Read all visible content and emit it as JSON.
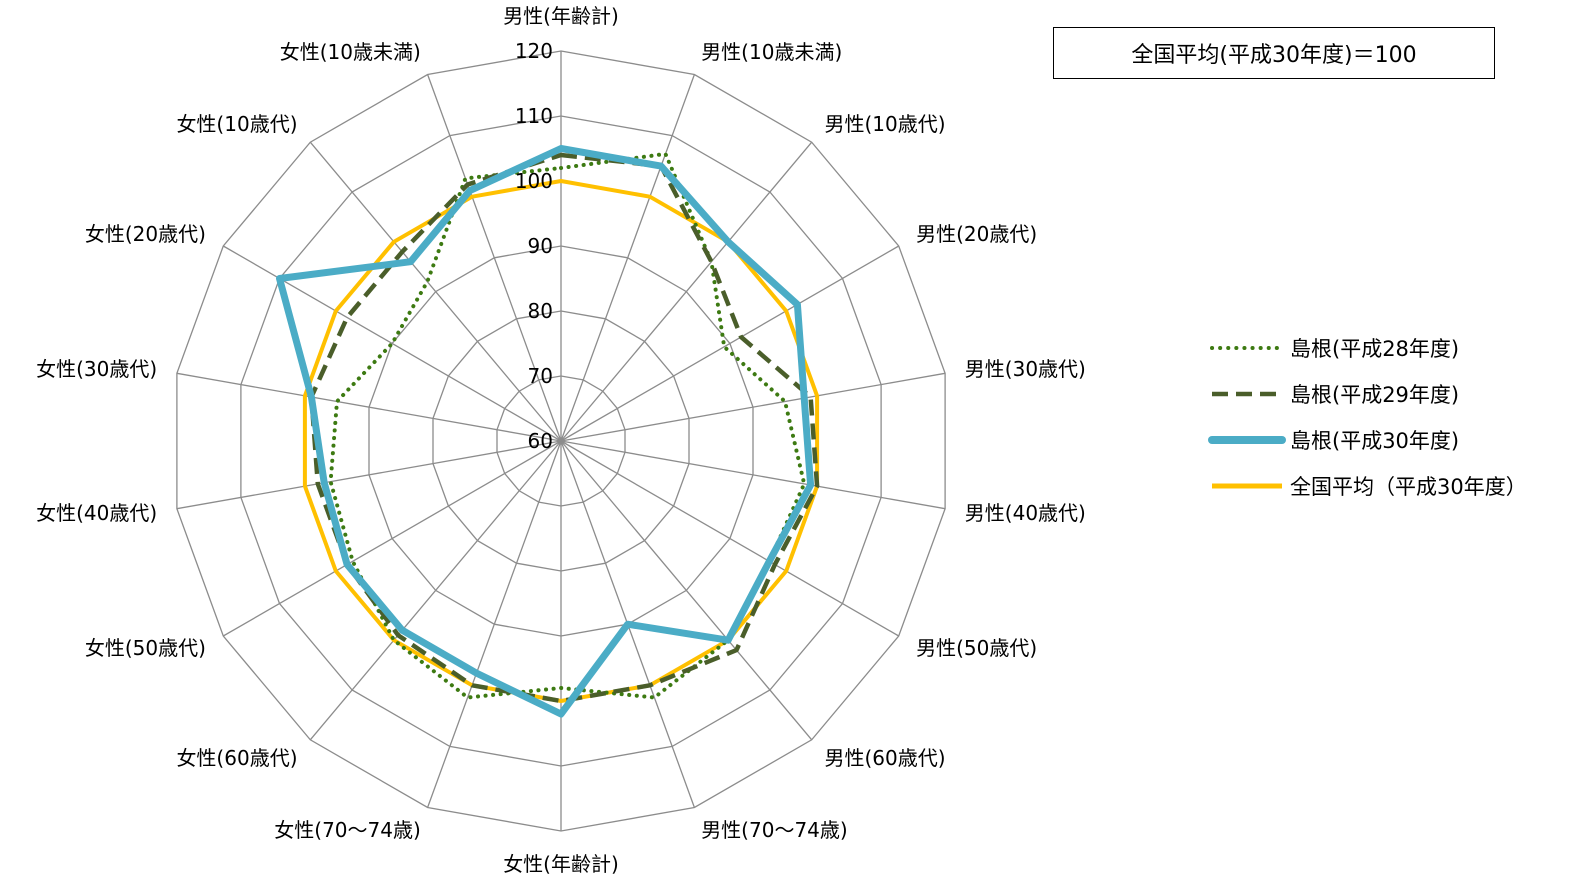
{
  "note": "全国平均(平成30年度)＝100",
  "chart_data": {
    "type": "radar",
    "title": "",
    "categories": [
      "男性(年齢計)",
      "男性(10歳未満)",
      "男性(10歳代)",
      "男性(20歳代)",
      "男性(30歳代)",
      "男性(40歳代)",
      "男性(50歳代)",
      "男性(60歳代)",
      "男性(70～74歳)",
      "女性(年齢計)",
      "女性(70～74歳)",
      "女性(60歳代)",
      "女性(50歳代)",
      "女性(40歳代)",
      "女性(30歳代)",
      "女性(20歳代)",
      "女性(10歳代)",
      "女性(10歳未満)"
    ],
    "rmin": 60,
    "rmax": 120,
    "ticks": [
      60,
      70,
      80,
      90,
      100,
      110,
      120
    ],
    "legend_position": "right",
    "series": [
      {
        "name": "島根(平成28年度)",
        "color": "#3d7a12",
        "style": "dotted",
        "values": [
          102,
          107,
          96,
          89,
          95,
          98,
          97,
          100,
          102,
          98,
          102,
          100,
          97,
          96,
          95,
          90,
          92,
          103
        ]
      },
      {
        "name": "島根(平成29年度)",
        "color": "#4a5e2a",
        "style": "dashed",
        "values": [
          104,
          105,
          96,
          92,
          99,
          100,
          98,
          102,
          100,
          100,
          100,
          99,
          98,
          98,
          99,
          98,
          98,
          102
        ]
      },
      {
        "name": "島根(平成30年度)",
        "color": "#4bacc6",
        "style": "solid-thick",
        "values": [
          105,
          105,
          100,
          102,
          98,
          99,
          97,
          100,
          90,
          102,
          98,
          98,
          98,
          97,
          99,
          110,
          96,
          101
        ]
      },
      {
        "name": "全国平均（平成30年度）",
        "color": "#ffc000",
        "style": "solid",
        "values": [
          100,
          100,
          100,
          100,
          100,
          100,
          100,
          100,
          100,
          100,
          100,
          100,
          100,
          100,
          100,
          100,
          100,
          100
        ]
      }
    ]
  }
}
